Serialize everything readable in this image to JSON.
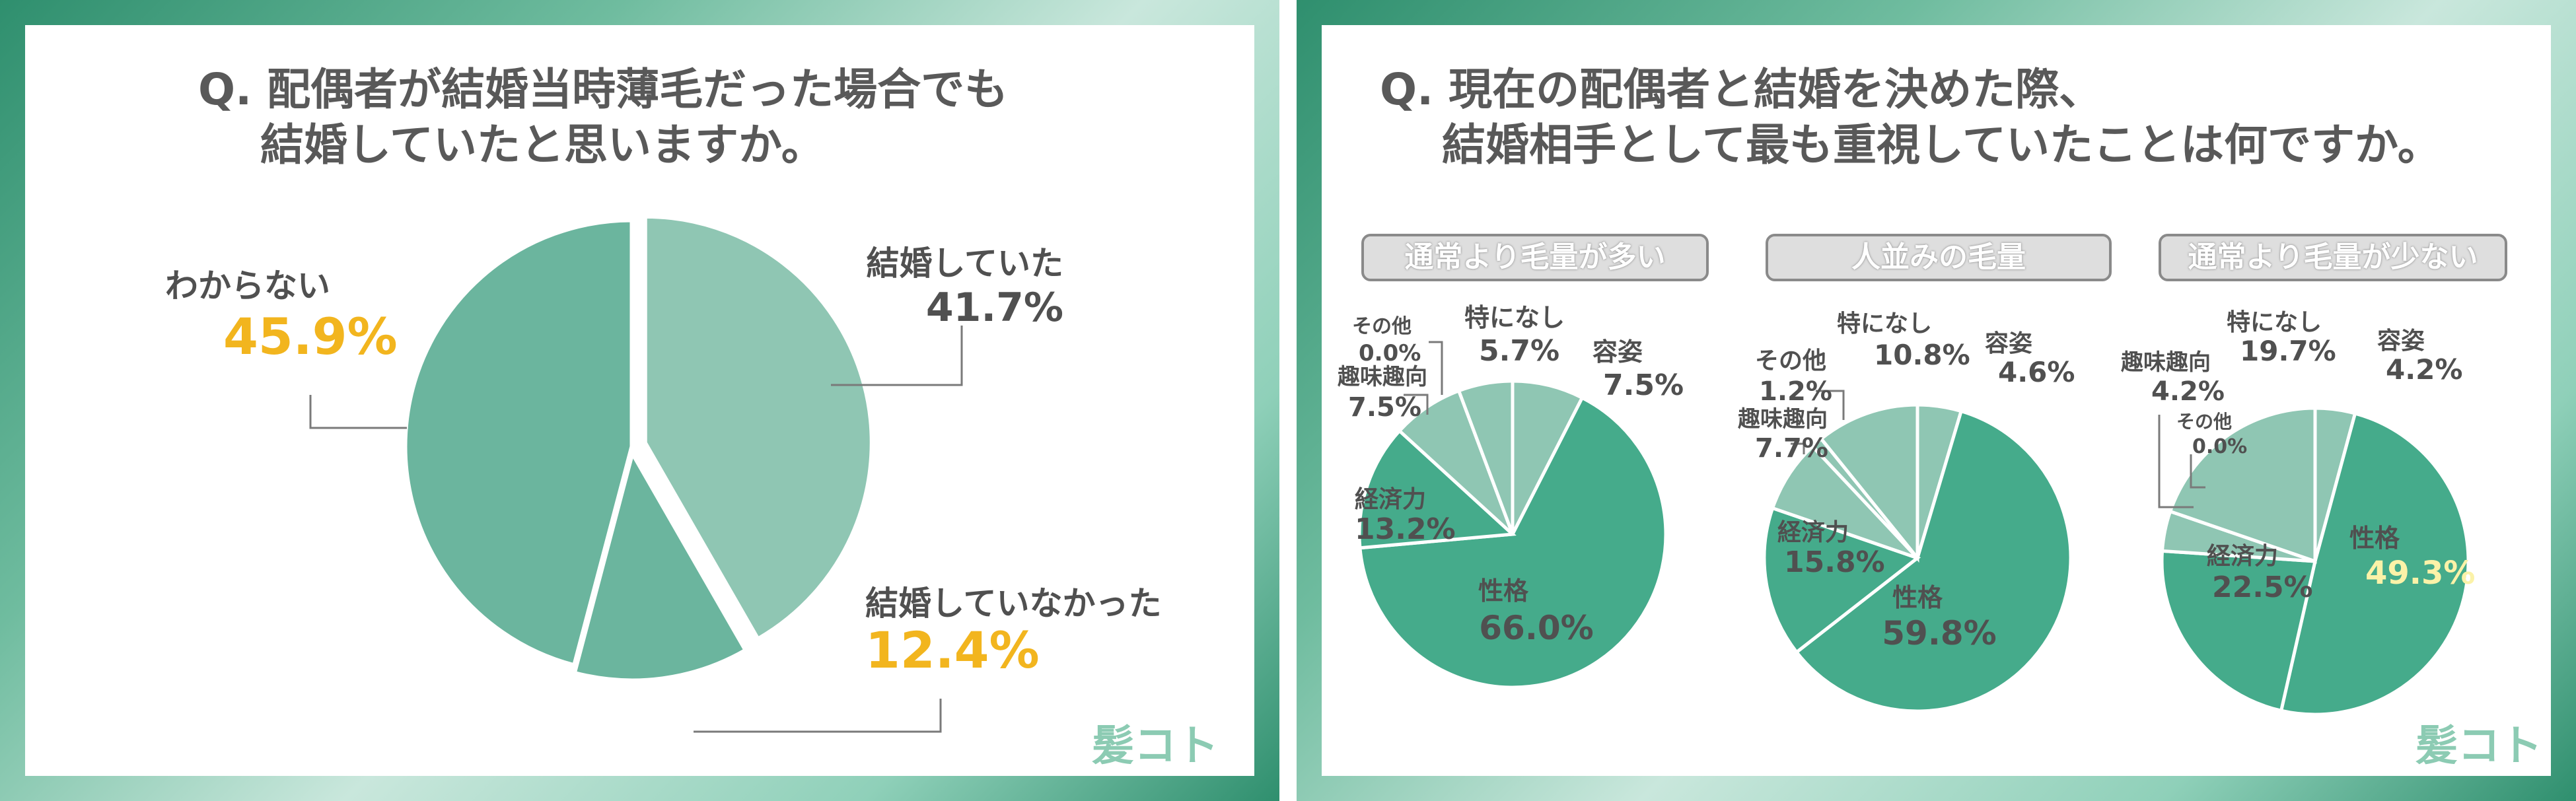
{
  "panel1": {
    "title_line1": "Q. 配偶者が結婚当時薄毛だった場合でも",
    "title_line2": "結婚していたと思いますか。",
    "logo": "髪コト"
  },
  "panel2": {
    "title_line1": "Q. 現在の配偶者と結婚を決めた際、",
    "title_line2": "結婚相手として最も重視していたことは何ですか。",
    "logo": "髪コト"
  },
  "colors": {
    "slice_light": "#8fc6b3",
    "slice_mid": "#6bb59e",
    "slice_dark": "#45ab8b",
    "accent_gold": "#f2b51e",
    "accent_pale": "#fbf2a8",
    "text": "#505050"
  },
  "chart_data": [
    {
      "type": "pie",
      "title": "",
      "slices": [
        {
          "label": "結婚していた",
          "value": 41.7,
          "value_text": "41.7%"
        },
        {
          "label": "結婚していなかった",
          "value": 12.4,
          "value_text": "12.4%"
        },
        {
          "label": "わからない",
          "value": 45.9,
          "value_text": "45.9%"
        }
      ]
    },
    {
      "type": "pie",
      "title": "通常より毛量が多い",
      "slices": [
        {
          "label": "容姿",
          "value": 7.5,
          "value_text": "7.5%"
        },
        {
          "label": "性格",
          "value": 66.0,
          "value_text": "66.0%"
        },
        {
          "label": "経済力",
          "value": 13.2,
          "value_text": "13.2%"
        },
        {
          "label": "趣味趣向",
          "value": 7.5,
          "value_text": "7.5%"
        },
        {
          "label": "その他",
          "value": 0.0,
          "value_text": "0.0%"
        },
        {
          "label": "特になし",
          "value": 5.7,
          "value_text": "5.7%"
        }
      ]
    },
    {
      "type": "pie",
      "title": "人並みの毛量",
      "slices": [
        {
          "label": "容姿",
          "value": 4.6,
          "value_text": "4.6%"
        },
        {
          "label": "性格",
          "value": 59.8,
          "value_text": "59.8%"
        },
        {
          "label": "経済力",
          "value": 15.8,
          "value_text": "15.8%"
        },
        {
          "label": "趣味趣向",
          "value": 7.7,
          "value_text": "7.7%"
        },
        {
          "label": "その他",
          "value": 1.2,
          "value_text": "1.2%"
        },
        {
          "label": "特になし",
          "value": 10.8,
          "value_text": "10.8%"
        }
      ]
    },
    {
      "type": "pie",
      "title": "通常より毛量が少ない",
      "slices": [
        {
          "label": "容姿",
          "value": 4.2,
          "value_text": "4.2%"
        },
        {
          "label": "性格",
          "value": 49.3,
          "value_text": "49.3%"
        },
        {
          "label": "経済力",
          "value": 22.5,
          "value_text": "22.5%"
        },
        {
          "label": "趣味趣向",
          "value": 4.2,
          "value_text": "4.2%"
        },
        {
          "label": "その他",
          "value": 0.0,
          "value_text": "0.0%"
        },
        {
          "label": "特になし",
          "value": 19.7,
          "value_text": "19.7%"
        }
      ]
    }
  ]
}
